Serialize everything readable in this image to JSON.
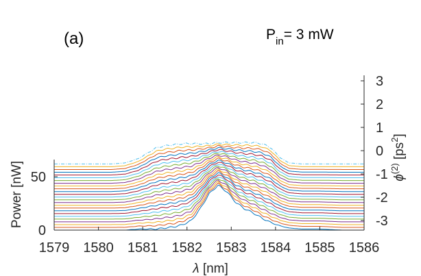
{
  "chart_data": {
    "type": "line",
    "panel_label": "(a)",
    "annotation": {
      "main": "P",
      "sub": "in",
      "rest": "= 3 mW"
    },
    "xlabel": {
      "symbol": "λ",
      "unit": " [nm]"
    },
    "ylabel_left": "Power [nW]",
    "ylabel_right": {
      "symbol": "ϕ",
      "sup": "(2)",
      "unit_pre": " [ps",
      "unit_sup": "2",
      "unit_post": "]"
    },
    "xlim": [
      1579,
      1586
    ],
    "x_ticks": [
      "1579",
      "1580",
      "1581",
      "1582",
      "1583",
      "1584",
      "1585",
      "1586"
    ],
    "y_left_ticks": [
      {
        "label": "0",
        "value": 0
      },
      {
        "label": "50",
        "value": 50
      }
    ],
    "y_right_ticks": [
      {
        "label": "-3",
        "value": -3
      },
      {
        "label": "-2",
        "value": -2
      },
      {
        "label": "-1",
        "value": -1
      },
      {
        "label": "0",
        "value": 0
      },
      {
        "label": "1",
        "value": 1
      },
      {
        "label": "2",
        "value": 2
      },
      {
        "label": "3",
        "value": 3
      }
    ],
    "y_right_range": [
      -3,
      3
    ],
    "traces": {
      "count": 25,
      "phi_start": -3,
      "phi_step": 0.25,
      "x": [
        1579.0,
        1579.5,
        1580.0,
        1580.3,
        1580.6,
        1580.9,
        1581.1,
        1581.3,
        1581.5,
        1581.7,
        1581.9,
        1582.1,
        1582.3,
        1582.5,
        1582.7,
        1582.9,
        1583.1,
        1583.3,
        1583.5,
        1583.7,
        1583.9,
        1584.1,
        1584.3,
        1584.6,
        1585.0,
        1585.5,
        1586.0
      ],
      "power_bottom_nW": [
        0,
        0,
        0,
        0,
        0,
        1,
        1,
        1,
        2,
        3,
        5,
        9,
        20,
        34,
        42,
        36,
        26,
        20,
        16,
        11,
        7,
        4,
        2,
        1,
        1,
        0,
        0
      ],
      "power_top_nW": [
        0,
        0,
        0,
        0,
        1,
        5,
        10,
        15,
        17,
        18,
        19,
        19,
        19,
        19,
        20,
        20,
        20,
        20,
        20,
        19,
        15,
        6,
        1,
        0,
        0,
        0,
        0
      ],
      "spacing_nW": 2.58,
      "colors": [
        "#0072bd",
        "#d95319",
        "#edb120",
        "#7e2f8e",
        "#77ac30",
        "#4dbeee",
        "#a2142f"
      ],
      "dashed_top": true
    }
  }
}
